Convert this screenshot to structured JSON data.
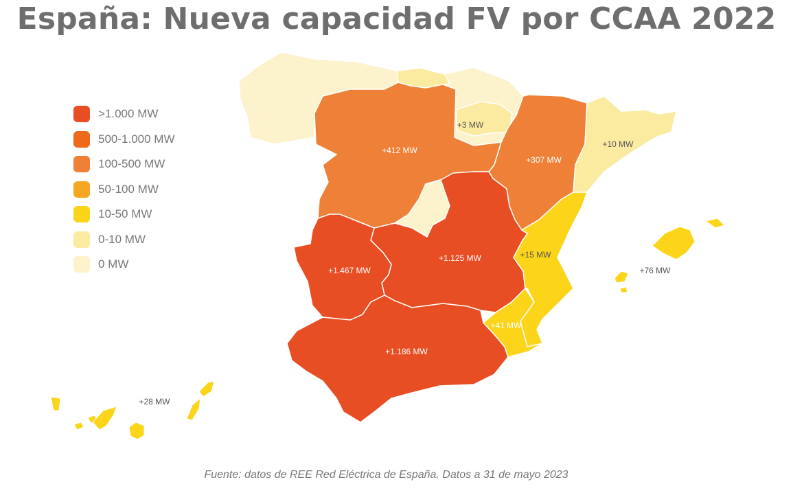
{
  "title": "España: Nueva capacidad FV por CCAA 2022",
  "source": "Fuente: datos de REE Red Eléctrica de España. Datos a 31 de mayo 2023",
  "colors": {
    "gt_1000": "#e84e24",
    "r500_1000": "#ec6a1a",
    "r100_500": "#ef8038",
    "r50_100": "#f5a623",
    "r10_50": "#fcd41a",
    "r0_10": "#fbeba0",
    "zero": "#fcf2cc"
  },
  "legend": [
    {
      "label": ">1.000 MW",
      "color": "#e84e24"
    },
    {
      "label": "500-1.000 MW",
      "color": "#ec6a1a"
    },
    {
      "label": "100-500 MW",
      "color": "#ef8038"
    },
    {
      "label": "50-100 MW",
      "color": "#f5a623"
    },
    {
      "label": "10-50 MW",
      "color": "#fcd41a"
    },
    {
      "label": "0-10 MW",
      "color": "#fbeba0"
    },
    {
      "label": "0 MW",
      "color": "#fcf2cc"
    }
  ],
  "regions": {
    "castilla_y_leon": {
      "label": "+412 MW"
    },
    "la_rioja": {
      "label": "+3 MW"
    },
    "cataluna": {
      "label": "+10 MW"
    },
    "aragon": {
      "label": "+307 MW"
    },
    "extremadura": {
      "label": "+1.467 MW"
    },
    "castilla_la_mancha": {
      "label": "+1.125 MW"
    },
    "comunidad_valenciana": {
      "label": "+15 MW"
    },
    "murcia": {
      "label": "+41 MW"
    },
    "andalucia": {
      "label": "+1.186 MW"
    },
    "baleares": {
      "label": "+76 MW"
    },
    "canarias": {
      "label": "+28 MW"
    }
  }
}
